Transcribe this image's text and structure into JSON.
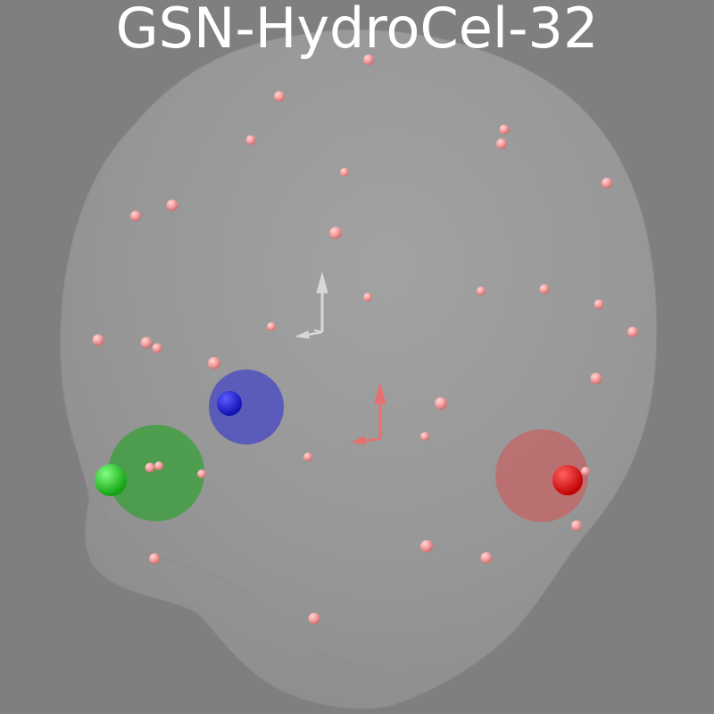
{
  "title": "GSN-HydroCel-32",
  "colors": {
    "background": "#7f7f7f",
    "head": "#999999",
    "electrode": "#f2a0a0",
    "nasion_fiducial": "#2020e0",
    "lpa_fiducial": "#20d020",
    "rpa_fiducial": "#e02020",
    "head_axes": "#d8d8d8",
    "mri_axes": "#e87070",
    "title_text": "#ffffff"
  },
  "fiducials": [
    {
      "name": "nasion",
      "color": "#2020e0"
    },
    {
      "name": "lpa",
      "color": "#20d020"
    },
    {
      "name": "rpa",
      "color": "#e02020"
    }
  ]
}
